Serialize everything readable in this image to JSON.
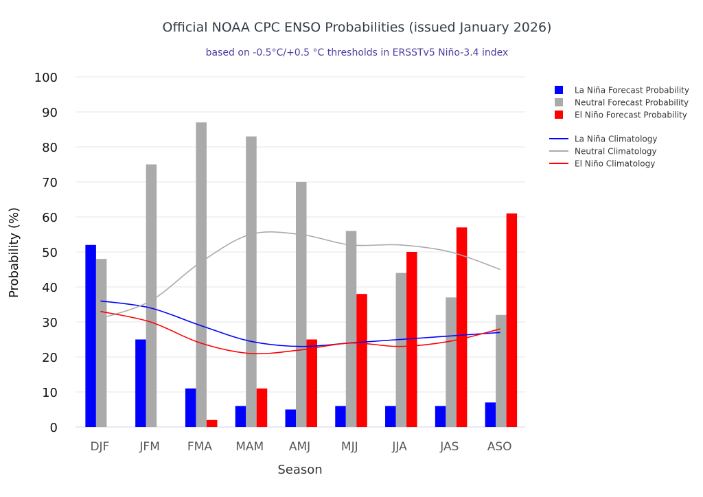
{
  "chart_data": {
    "type": "bar",
    "title": "Official NOAA CPC ENSO Probabilities (issued January 2026)",
    "subtitle": "based on -0.5°C/+0.5 °C thresholds in ERSSTv5 Niño-3.4 index",
    "xlabel": "Season",
    "ylabel": "Probability (%)",
    "ylim": [
      0,
      100
    ],
    "yticks": [
      0,
      10,
      20,
      30,
      40,
      50,
      60,
      70,
      80,
      90,
      100
    ],
    "grid": true,
    "legend_position": "right",
    "categories": [
      "DJF",
      "JFM",
      "FMA",
      "MAM",
      "AMJ",
      "MJJ",
      "JJA",
      "JAS",
      "ASO"
    ],
    "series": [
      {
        "name": "La Niña Forecast Probability",
        "kind": "bar",
        "color": "#0000ff",
        "values": [
          52,
          25,
          11,
          6,
          5,
          6,
          6,
          6,
          7
        ]
      },
      {
        "name": "Neutral Forecast Probability",
        "kind": "bar",
        "color": "#aaaaaa",
        "values": [
          48,
          75,
          87,
          83,
          70,
          56,
          44,
          37,
          32
        ]
      },
      {
        "name": "El Niño Forecast Probability",
        "kind": "bar",
        "color": "#ff0000",
        "values": [
          0,
          0,
          2,
          11,
          25,
          38,
          50,
          57,
          61
        ]
      },
      {
        "name": "La Niña Climatology",
        "kind": "line",
        "color": "#0000ff",
        "values": [
          36,
          34,
          29,
          24.5,
          23,
          24,
          25,
          26,
          27
        ]
      },
      {
        "name": "Neutral Climatology",
        "kind": "line",
        "color": "#aaaaaa",
        "values": [
          31,
          36,
          47,
          55,
          55,
          52,
          52,
          50,
          45
        ]
      },
      {
        "name": "El Niño Climatology",
        "kind": "line",
        "color": "#ff0000",
        "values": [
          33,
          30,
          24,
          21,
          22,
          24,
          23,
          24.5,
          28
        ]
      }
    ]
  }
}
